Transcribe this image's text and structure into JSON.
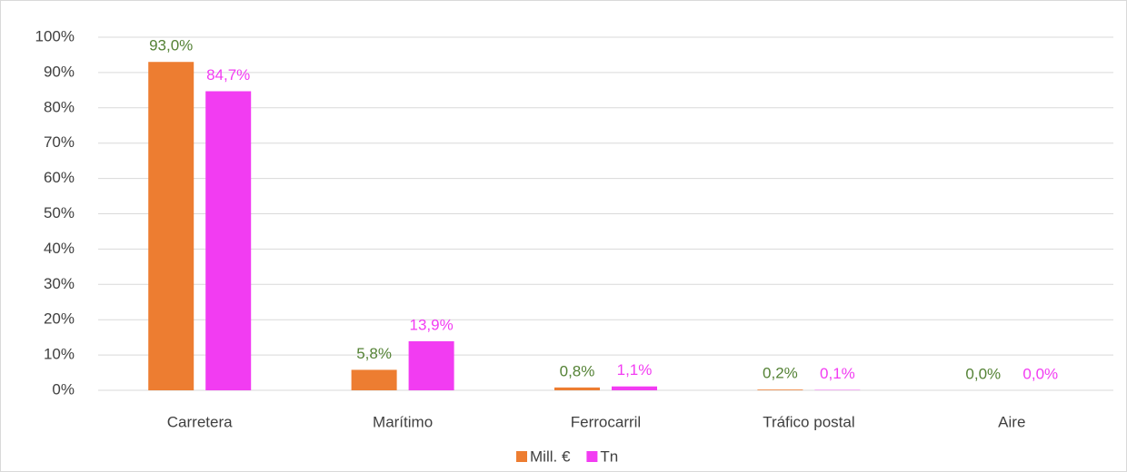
{
  "chart_data": {
    "type": "bar",
    "categories": [
      "Carretera",
      "Marítimo",
      "Ferrocarril",
      "Tráfico postal",
      "Aire"
    ],
    "series": [
      {
        "name": "Mill. €",
        "color": "#ED7D31",
        "label_color": "#548235",
        "values": [
          93.0,
          5.8,
          0.8,
          0.2,
          0.0
        ],
        "value_labels": [
          "93,0%",
          "5,8%",
          "0,8%",
          "0,2%",
          "0,0%"
        ]
      },
      {
        "name": "Tn",
        "color": "#F23CF2",
        "label_color": "#F23CF2",
        "values": [
          84.7,
          13.9,
          1.1,
          0.1,
          0.0
        ],
        "value_labels": [
          "84,7%",
          "13,9%",
          "1,1%",
          "0,1%",
          "0,0%"
        ]
      }
    ],
    "ylim": [
      0,
      100
    ],
    "yticks": [
      {
        "value": 0,
        "label": "0%"
      },
      {
        "value": 10,
        "label": "10%"
      },
      {
        "value": 20,
        "label": "20%"
      },
      {
        "value": 30,
        "label": "30%"
      },
      {
        "value": 40,
        "label": "40%"
      },
      {
        "value": 50,
        "label": "50%"
      },
      {
        "value": 60,
        "label": "60%"
      },
      {
        "value": 70,
        "label": "70%"
      },
      {
        "value": 80,
        "label": "80%"
      },
      {
        "value": 90,
        "label": "90%"
      },
      {
        "value": 100,
        "label": "100%"
      }
    ],
    "grid": true,
    "legend": "bottom"
  }
}
